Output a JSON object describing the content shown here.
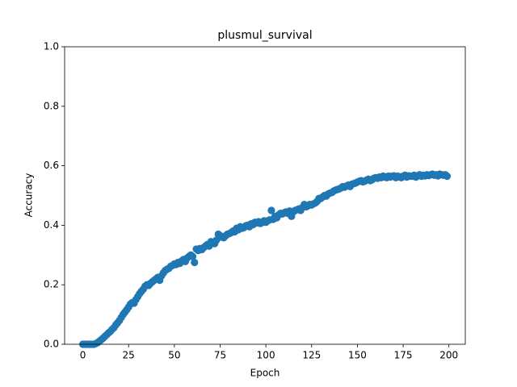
{
  "chart_data": {
    "type": "scatter",
    "title": "plusmul_survival",
    "xlabel": "Epoch",
    "ylabel": "Accuracy",
    "color": "#1f77b4",
    "x": [
      0,
      1,
      2,
      3,
      4,
      5,
      6,
      7,
      8,
      9,
      10,
      11,
      12,
      13,
      14,
      15,
      16,
      17,
      18,
      19,
      20,
      21,
      22,
      23,
      24,
      25,
      26,
      27,
      28,
      29,
      30,
      31,
      32,
      33,
      34,
      35,
      36,
      37,
      38,
      39,
      40,
      41,
      42,
      43,
      44,
      45,
      46,
      47,
      48,
      49,
      50,
      51,
      52,
      53,
      54,
      55,
      56,
      57,
      58,
      59,
      60,
      61,
      62,
      63,
      64,
      65,
      66,
      67,
      68,
      69,
      70,
      71,
      72,
      73,
      74,
      75,
      76,
      77,
      78,
      79,
      80,
      81,
      82,
      83,
      84,
      85,
      86,
      87,
      88,
      89,
      90,
      91,
      92,
      93,
      94,
      95,
      96,
      97,
      98,
      99,
      100,
      101,
      102,
      103,
      104,
      105,
      106,
      107,
      108,
      109,
      110,
      111,
      112,
      113,
      114,
      115,
      116,
      117,
      118,
      119,
      120,
      121,
      122,
      123,
      124,
      125,
      126,
      127,
      128,
      129,
      130,
      131,
      132,
      133,
      134,
      135,
      136,
      137,
      138,
      139,
      140,
      141,
      142,
      143,
      144,
      145,
      146,
      147,
      148,
      149,
      150,
      151,
      152,
      153,
      154,
      155,
      156,
      157,
      158,
      159,
      160,
      161,
      162,
      163,
      164,
      165,
      166,
      167,
      168,
      169,
      170,
      171,
      172,
      173,
      174,
      175,
      176,
      177,
      178,
      179,
      180,
      181,
      182,
      183,
      184,
      185,
      186,
      187,
      188,
      189,
      190,
      191,
      192,
      193,
      194,
      195,
      196,
      197,
      198,
      199
    ],
    "values": [
      0,
      0,
      0,
      0,
      0,
      0,
      0,
      0.002,
      0.005,
      0.01,
      0.015,
      0.02,
      0.026,
      0.032,
      0.038,
      0.043,
      0.05,
      0.056,
      0.065,
      0.072,
      0.08,
      0.09,
      0.1,
      0.108,
      0.116,
      0.125,
      0.135,
      0.14,
      0.138,
      0.15,
      0.16,
      0.17,
      0.178,
      0.185,
      0.195,
      0.2,
      0.198,
      0.205,
      0.21,
      0.215,
      0.22,
      0.225,
      0.215,
      0.23,
      0.24,
      0.248,
      0.252,
      0.255,
      0.262,
      0.265,
      0.27,
      0.268,
      0.275,
      0.272,
      0.28,
      0.285,
      0.278,
      0.29,
      0.295,
      0.3,
      0.295,
      0.275,
      0.32,
      0.315,
      0.322,
      0.318,
      0.325,
      0.33,
      0.335,
      0.33,
      0.345,
      0.34,
      0.338,
      0.35,
      0.37,
      0.365,
      0.36,
      0.358,
      0.365,
      0.37,
      0.372,
      0.375,
      0.38,
      0.378,
      0.39,
      0.385,
      0.395,
      0.39,
      0.392,
      0.398,
      0.4,
      0.395,
      0.405,
      0.402,
      0.41,
      0.408,
      0.412,
      0.406,
      0.41,
      0.415,
      0.41,
      0.415,
      0.418,
      0.45,
      0.42,
      0.43,
      0.425,
      0.435,
      0.44,
      0.438,
      0.442,
      0.445,
      0.44,
      0.448,
      0.43,
      0.445,
      0.45,
      0.452,
      0.455,
      0.45,
      0.46,
      0.47,
      0.462,
      0.465,
      0.47,
      0.468,
      0.472,
      0.475,
      0.48,
      0.49,
      0.49,
      0.495,
      0.5,
      0.498,
      0.505,
      0.508,
      0.51,
      0.515,
      0.518,
      0.52,
      0.522,
      0.525,
      0.53,
      0.528,
      0.532,
      0.535,
      0.53,
      0.538,
      0.54,
      0.542,
      0.545,
      0.548,
      0.55,
      0.546,
      0.548,
      0.552,
      0.555,
      0.55,
      0.553,
      0.558,
      0.56,
      0.558,
      0.562,
      0.56,
      0.565,
      0.563,
      0.56,
      0.565,
      0.562,
      0.565,
      0.566,
      0.56,
      0.565,
      0.563,
      0.56,
      0.565,
      0.568,
      0.562,
      0.566,
      0.565,
      0.565,
      0.568,
      0.562,
      0.566,
      0.57,
      0.565,
      0.568,
      0.566,
      0.57,
      0.567,
      0.57,
      0.572,
      0.568,
      0.57,
      0.566,
      0.572,
      0.57,
      0.568,
      0.57,
      0.565
    ],
    "xlim": [
      -9.95,
      208.95
    ],
    "xticks": [
      0,
      25,
      50,
      75,
      100,
      125,
      150,
      175,
      200
    ],
    "ylim": [
      0,
      1
    ],
    "yticks": [
      {
        "value": 0,
        "label": "0.0"
      },
      {
        "value": 0.2,
        "label": "0.2"
      },
      {
        "value": 0.4,
        "label": "0.4"
      },
      {
        "value": 0.6,
        "label": "0.6"
      },
      {
        "value": 0.8,
        "label": "0.8"
      },
      {
        "value": 1,
        "label": "1.0"
      }
    ]
  }
}
